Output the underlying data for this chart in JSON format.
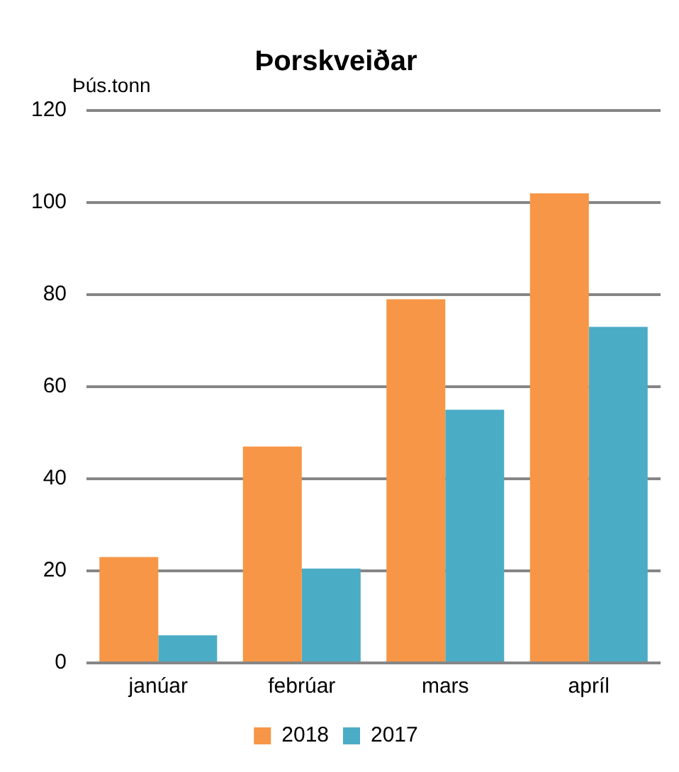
{
  "chart_data": {
    "type": "bar",
    "title": "Þorskveiðar",
    "ylabel": "Þús.tonn",
    "categories": [
      "janúar",
      "febrúar",
      "mars",
      "apríl"
    ],
    "series": [
      {
        "name": "2018",
        "color": "#f79646",
        "values": [
          23,
          47,
          79,
          102
        ]
      },
      {
        "name": "2017",
        "color": "#4bacc6",
        "values": [
          6,
          20.5,
          55,
          73
        ]
      }
    ],
    "ylim": [
      0,
      120
    ],
    "yticks": [
      0,
      20,
      40,
      60,
      80,
      100,
      120
    ],
    "grid": "y",
    "legend": "bottom"
  }
}
